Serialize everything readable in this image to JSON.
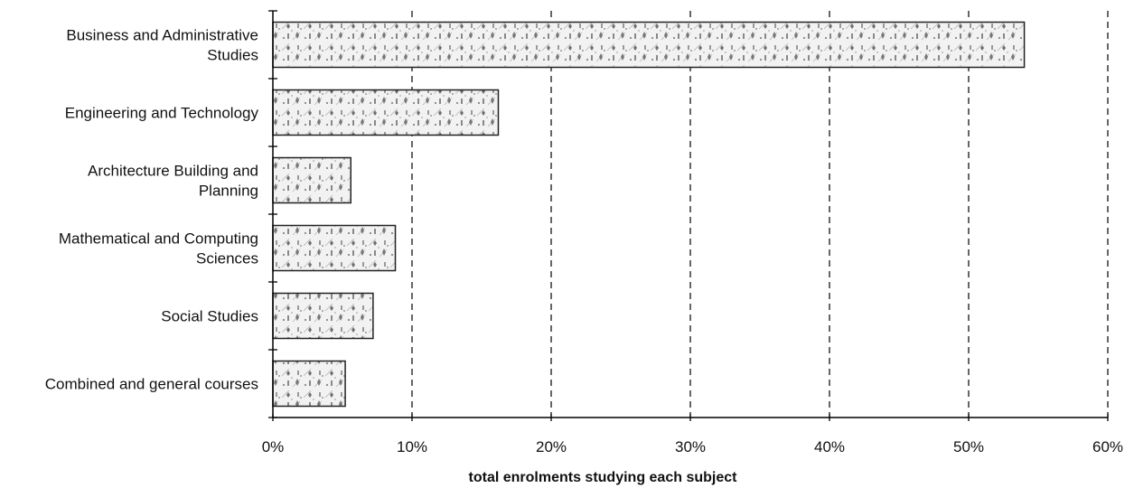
{
  "chart_data": {
    "type": "bar",
    "orientation": "horizontal",
    "categories": [
      [
        "Business and Administrative",
        "Studies"
      ],
      [
        "Engineering and Technology"
      ],
      [
        "Architecture Building and",
        "Planning"
      ],
      [
        "Mathematical and Computing",
        "Sciences"
      ],
      [
        "Social Studies"
      ],
      [
        "Combined and general courses"
      ]
    ],
    "values": [
      54,
      16.2,
      5.6,
      8.8,
      7.2,
      5.2
    ],
    "xlim": [
      0,
      60
    ],
    "xticks": [
      0,
      10,
      20,
      30,
      40,
      50,
      60
    ],
    "tick_labels": [
      "0%",
      "10%",
      "20%",
      "30%",
      "40%",
      "50%",
      "60%"
    ],
    "xlabel": "total enrolments studying each subject",
    "grid": "vertical dashed",
    "bar_fill": "stippled grey pattern",
    "colors": {
      "bar_stroke": "#222222",
      "bar_fill": "#f2f2f2",
      "stipple": "#6e6e6e",
      "axis": "#000000"
    }
  }
}
